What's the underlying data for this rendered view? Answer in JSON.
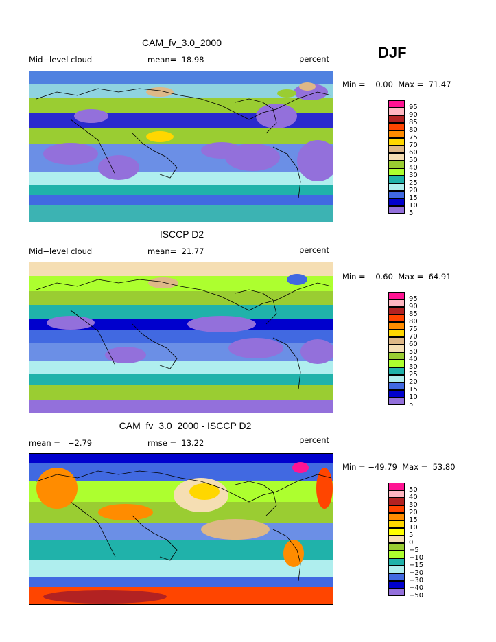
{
  "season": "DJF",
  "panels": [
    {
      "title": "CAM_fv_3.0_2000",
      "left_label": "Mid−level cloud",
      "center_label": "mean=  18.98",
      "units": "percent",
      "minmax": "Min =    0.00  Max =  71.47",
      "colorbar_ticks": [
        "95",
        "90",
        "85",
        "80",
        "75",
        "70",
        "60",
        "50",
        "40",
        "30",
        "25",
        "20",
        "15",
        "10",
        "5"
      ]
    },
    {
      "title": "ISCCP D2",
      "left_label": "Mid−level cloud",
      "center_label": "mean=  21.77",
      "units": "percent",
      "minmax": "Min =    0.60  Max =  64.91",
      "colorbar_ticks": [
        "95",
        "90",
        "85",
        "80",
        "75",
        "70",
        "60",
        "50",
        "40",
        "30",
        "25",
        "20",
        "15",
        "10",
        "5"
      ]
    },
    {
      "title": "CAM_fv_3.0_2000 - ISCCP D2",
      "left_label": "mean =   −2.79",
      "center_label": "rmse =  13.22",
      "units": "percent",
      "minmax": "Min = −49.79  Max =  53.80",
      "colorbar_ticks": [
        "50",
        "40",
        "30",
        "20",
        "15",
        "10",
        "5",
        "0",
        "−5",
        "−10",
        "−15",
        "−20",
        "−30",
        "−40",
        "−50"
      ]
    }
  ],
  "palette": [
    "#ff1493",
    "#ffb6c1",
    "#b22222",
    "#ff4500",
    "#ff8c00",
    "#ffd700",
    "#ffff00",
    "#deb887",
    "#f5deb3",
    "#9acd32",
    "#adff2f",
    "#20b2aa",
    "#afeeee",
    "#4169e1",
    "#0000cd",
    "#9370db"
  ]
}
